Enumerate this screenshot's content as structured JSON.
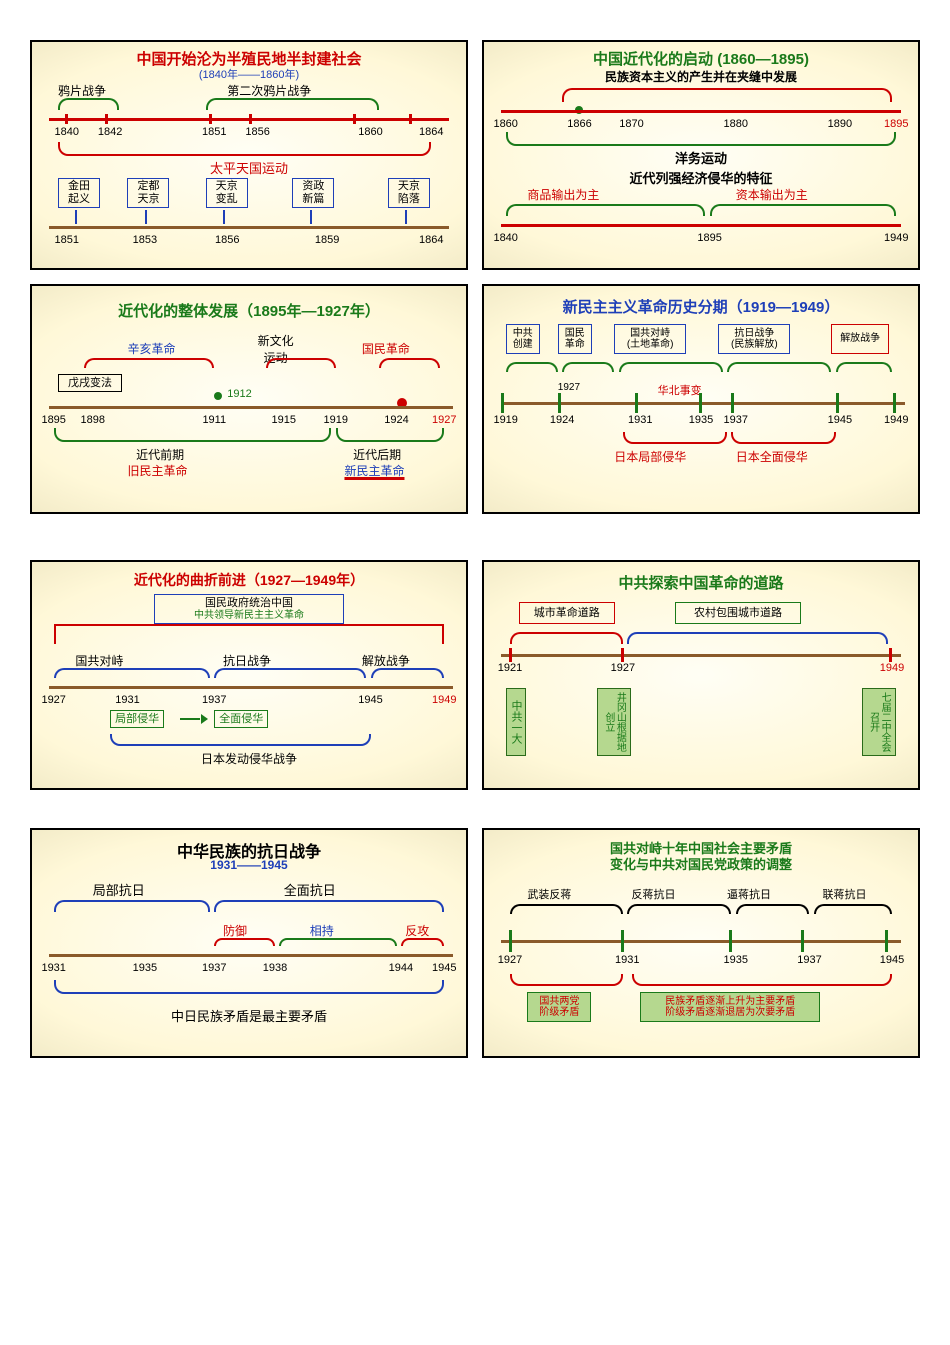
{
  "colors": {
    "red": "#cc0000",
    "green": "#1a7a1a",
    "blue": "#1e3fb8",
    "blue_bright": "#0033ff",
    "brown": "#8a5a2a",
    "black": "#000000",
    "box_green_bg": "#b5d88f",
    "box_green_border": "#2a6b1a",
    "orange": "#d96b00"
  },
  "p1": {
    "title": "中国开始沦为半殖民地半封建社会",
    "subtitle": "(1840年——1860年)",
    "top_brace_left": "鸦片战争",
    "top_brace_right": "第二次鸦片战争",
    "axis1_ticks": [
      "1840",
      "1842",
      "1851",
      "1856",
      "1860",
      "1864"
    ],
    "axis1_positions": [
      8,
      18,
      42,
      52,
      78,
      92
    ],
    "mid_brace": "太平天国运动",
    "boxes": [
      "金田\n起义",
      "定都\n天京",
      "天京\n变乱",
      "资政\n新篇",
      "天京\n陷落"
    ],
    "axis2_ticks": [
      "1851",
      "1853",
      "1856",
      "1859",
      "1864"
    ],
    "axis2_positions": [
      8,
      26,
      45,
      68,
      92
    ]
  },
  "p2": {
    "title": "中国近代化的启动 (1860—1895)",
    "subtitle": "民族资本主义的产生并在夹缝中发展",
    "axis1_ticks": [
      "1860",
      "1866",
      "1870",
      "1880",
      "1890",
      "1895"
    ],
    "axis1_positions": [
      5,
      22,
      34,
      58,
      82,
      95
    ],
    "mid_label": "洋务运动",
    "brace_title": "近代列强经济侵华的特征",
    "brace_left": "商品输出为主",
    "brace_right": "资本输出为主",
    "axis2_ticks": [
      "1840",
      "1895",
      "1949"
    ],
    "axis2_positions": [
      5,
      52,
      95
    ]
  },
  "p3": {
    "title": "近代化的整体发展（1895年—1927年）",
    "labels_top": [
      "辛亥革命",
      "新文化\n运动",
      "国民革命"
    ],
    "label_wuxu": "戊戌变法",
    "year_1912": "1912",
    "axis_ticks": [
      "1895",
      "1898",
      "1911",
      "1915",
      "1919",
      "1924",
      "1927"
    ],
    "axis_positions": [
      5,
      14,
      42,
      58,
      70,
      84,
      95
    ],
    "bottom_left_t": "近代前期",
    "bottom_left_b": "旧民主革命",
    "bottom_right_t": "近代后期",
    "bottom_right_b": "新民主革命"
  },
  "p4": {
    "title": "新民主主义革命历史分期（1919—1949）",
    "boxes_top": [
      "中共\n创建",
      "国民\n革命",
      "国共对峙\n(土地革命)",
      "抗日战争\n(民族解放)",
      "解放战争"
    ],
    "mid_label": "华北事变",
    "year_1927": "1927",
    "axis_ticks": [
      "1919",
      "1924",
      "1931",
      "1935",
      "1937",
      "1945",
      "1949"
    ],
    "axis_positions": [
      5,
      18,
      36,
      50,
      58,
      82,
      95
    ],
    "bottom_left": "日本局部侵华",
    "bottom_right": "日本全面侵华"
  },
  "p5": {
    "title": "近代化的曲折前进（1927—1949年）",
    "box_top_a": "国民政府统治中国",
    "box_top_b": "中共领导新民主主义革命",
    "mid_labels": [
      "国共对峙",
      "抗日战争",
      "解放战争"
    ],
    "axis_ticks": [
      "1927",
      "1931",
      "1937",
      "1945",
      "1949"
    ],
    "axis_positions": [
      5,
      22,
      42,
      78,
      95
    ],
    "box_a": "局部侵华",
    "box_b": "全面侵华",
    "bottom": "日本发动侵华战争"
  },
  "p6": {
    "title": "中共探索中国革命的道路",
    "box_left": "城市革命道路",
    "box_right": "农村包围城市道路",
    "axis_ticks": [
      "1921",
      "1927",
      "1949"
    ],
    "axis_positions": [
      6,
      32,
      94
    ],
    "v1": "中共一大",
    "v2a": "井冈山根据地创立",
    "v3a": "七届二中全会召开"
  },
  "p7": {
    "title": "中华民族的抗日战争",
    "subtitle": "1931——1945",
    "top_left": "局部抗日",
    "top_right": "全面抗日",
    "stage1": "防御",
    "stage2": "相持",
    "stage3": "反攻",
    "axis_ticks": [
      "1931",
      "1935",
      "1937",
      "1938",
      "1944",
      "1945"
    ],
    "axis_positions": [
      5,
      26,
      42,
      56,
      85,
      95
    ],
    "bottom": "中日民族矛盾是最主要矛盾"
  },
  "p8": {
    "title_a": "国共对峙十年中国社会主要矛盾",
    "title_b": "变化与中共对国民党政策的调整",
    "top_labels": [
      "武装反蒋",
      "反蒋抗日",
      "逼蒋抗日",
      "联蒋抗日"
    ],
    "axis_ticks": [
      "1927",
      "1931",
      "1935",
      "1937",
      "1945"
    ],
    "axis_positions": [
      6,
      33,
      58,
      75,
      94
    ],
    "box_a": "国共两党\n阶级矛盾",
    "box_b": "民族矛盾逐渐上升为主要矛盾\n阶级矛盾逐渐退居为次要矛盾"
  }
}
